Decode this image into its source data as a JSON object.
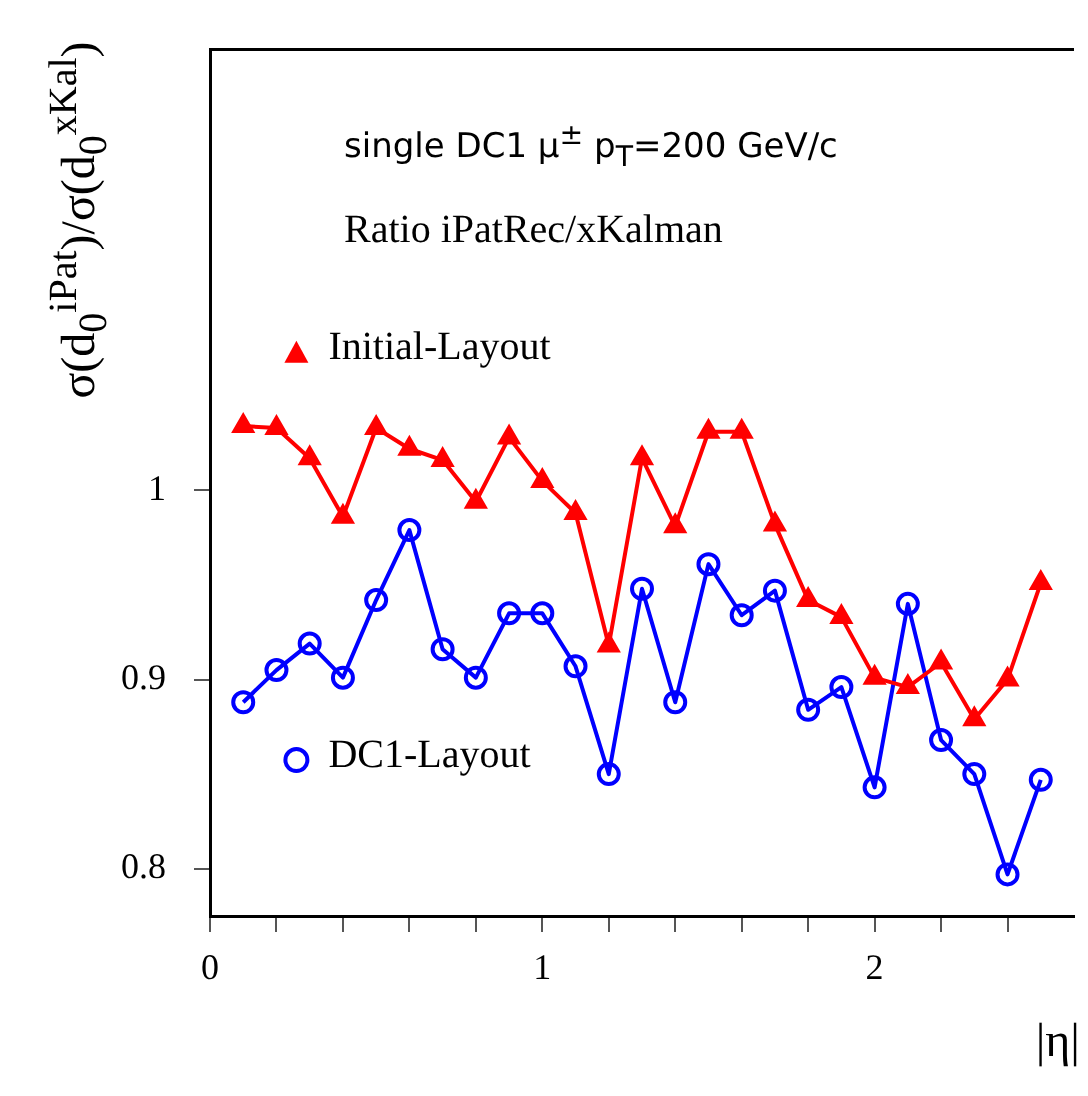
{
  "chart_data": {
    "type": "line",
    "title": "Ratio iPatRec/xKalman",
    "subtitle": "single DC1 μ$^{±}$ p$_{T}$=200 GeV/c",
    "xlabel": "|η|",
    "ylabel": "σ(d$_{0}$$^{iPat}$)/σ(d$_{0}$$^{xKal}$)",
    "x": [
      0.1,
      0.2,
      0.3,
      0.4,
      0.5,
      0.6,
      0.7,
      0.8,
      0.9,
      1.0,
      1.1,
      1.2,
      1.3,
      1.4,
      1.5,
      1.6,
      1.7,
      1.8,
      1.9,
      2.0,
      2.1,
      2.2,
      2.3,
      2.4,
      2.5
    ],
    "series": [
      {
        "name": "Initial-Layout",
        "color": "#ff0000",
        "marker": "triangle",
        "values": [
          1.034,
          1.033,
          1.017,
          0.986,
          1.033,
          1.022,
          1.016,
          0.994,
          1.028,
          1.005,
          0.988,
          0.918,
          1.017,
          0.981,
          1.031,
          1.031,
          0.982,
          0.942,
          0.933,
          0.901,
          0.896,
          0.909,
          0.879,
          0.9,
          0.951
        ]
      },
      {
        "name": "DC1-Layout",
        "color": "#0000ff",
        "marker": "circle",
        "values": [
          0.888,
          0.905,
          0.919,
          0.901,
          0.942,
          0.979,
          0.916,
          0.901,
          0.935,
          0.935,
          0.907,
          0.85,
          0.948,
          0.888,
          0.961,
          0.934,
          0.947,
          0.884,
          0.896,
          0.843,
          0.94,
          0.868,
          0.85,
          0.797,
          0.847
        ]
      }
    ],
    "xlim": [
      0,
      2.6
    ],
    "xticks": [
      0,
      {
        "value": 0.2,
        "label": null
      },
      {
        "value": 0.4,
        "label": null
      },
      {
        "value": 0.6,
        "label": null
      },
      {
        "value": 0.8,
        "label": null
      },
      1,
      {
        "value": 1.2,
        "label": null
      },
      {
        "value": 1.4,
        "label": null
      },
      {
        "value": 1.6,
        "label": null
      },
      {
        "value": 1.8,
        "label": null
      },
      2,
      {
        "value": 2.2,
        "label": null
      },
      {
        "value": 2.4,
        "label": null
      }
    ],
    "ylim": [
      0.775,
      1.233
    ],
    "yticks": [
      {
        "value": 0.8,
        "label": "0.8"
      },
      {
        "value": 0.9,
        "label": "0.9"
      },
      1
    ],
    "grid": false,
    "legend": "left",
    "line_style": "solid"
  }
}
